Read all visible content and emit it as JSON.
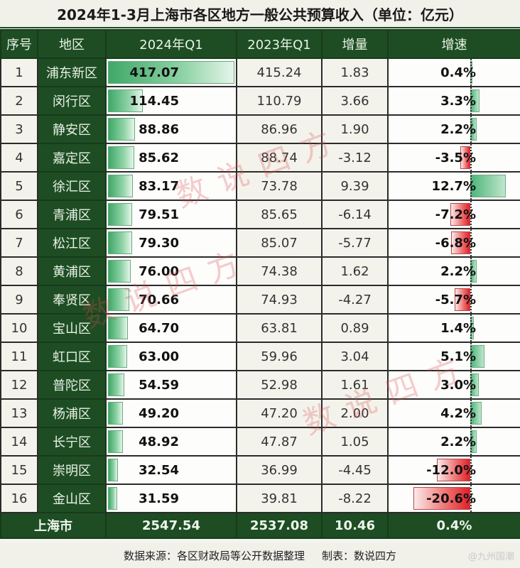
{
  "title": "2024年1-3月上海市各区地方一般公共预算收入（单位：亿元）",
  "headers": [
    "序号",
    "地区",
    "2024年Q1",
    "2023年Q1",
    "增量",
    "增速"
  ],
  "rows": [
    {
      "no": "1",
      "area": "浦东新区",
      "q1_2024": "417.07",
      "q1_2023": "415.24",
      "delta": "1.83",
      "rate": "0.4%"
    },
    {
      "no": "2",
      "area": "闵行区",
      "q1_2024": "114.45",
      "q1_2023": "110.79",
      "delta": "3.66",
      "rate": "3.3%"
    },
    {
      "no": "3",
      "area": "静安区",
      "q1_2024": "88.86",
      "q1_2023": "86.96",
      "delta": "1.90",
      "rate": "2.2%"
    },
    {
      "no": "4",
      "area": "嘉定区",
      "q1_2024": "85.62",
      "q1_2023": "88.74",
      "delta": "-3.12",
      "rate": "-3.5%"
    },
    {
      "no": "5",
      "area": "徐汇区",
      "q1_2024": "83.17",
      "q1_2023": "73.78",
      "delta": "9.39",
      "rate": "12.7%"
    },
    {
      "no": "6",
      "area": "青浦区",
      "q1_2024": "79.51",
      "q1_2023": "85.65",
      "delta": "-6.14",
      "rate": "-7.2%"
    },
    {
      "no": "7",
      "area": "松江区",
      "q1_2024": "79.30",
      "q1_2023": "85.07",
      "delta": "-5.77",
      "rate": "-6.8%"
    },
    {
      "no": "8",
      "area": "黄浦区",
      "q1_2024": "76.00",
      "q1_2023": "74.38",
      "delta": "1.62",
      "rate": "2.2%"
    },
    {
      "no": "9",
      "area": "奉贤区",
      "q1_2024": "70.66",
      "q1_2023": "74.93",
      "delta": "-4.27",
      "rate": "-5.7%"
    },
    {
      "no": "10",
      "area": "宝山区",
      "q1_2024": "64.70",
      "q1_2023": "63.81",
      "delta": "0.89",
      "rate": "1.4%"
    },
    {
      "no": "11",
      "area": "虹口区",
      "q1_2024": "63.00",
      "q1_2023": "59.96",
      "delta": "3.04",
      "rate": "5.1%"
    },
    {
      "no": "12",
      "area": "普陀区",
      "q1_2024": "54.59",
      "q1_2023": "52.98",
      "delta": "1.61",
      "rate": "3.0%"
    },
    {
      "no": "13",
      "area": "杨浦区",
      "q1_2024": "49.20",
      "q1_2023": "47.20",
      "delta": "2.00",
      "rate": "4.2%"
    },
    {
      "no": "14",
      "area": "长宁区",
      "q1_2024": "48.92",
      "q1_2023": "47.87",
      "delta": "1.05",
      "rate": "2.2%"
    },
    {
      "no": "15",
      "area": "崇明区",
      "q1_2024": "32.54",
      "q1_2023": "36.99",
      "delta": "-4.45",
      "rate": "-12.0%"
    },
    {
      "no": "16",
      "area": "金山区",
      "q1_2024": "31.59",
      "q1_2023": "39.81",
      "delta": "-8.22",
      "rate": "-20.6%"
    }
  ],
  "total": {
    "area": "上海市",
    "q1_2024": "2547.54",
    "q1_2023": "2537.08",
    "delta": "10.46",
    "rate": "0.4%"
  },
  "footer": {
    "source": "数据来源：各区财政局等公开数据整理",
    "maker": "制表：数说四方",
    "corner_watermark": "@九州国潮"
  },
  "watermark_text": "数说四方",
  "colors": {
    "header_green": "#1e4d23",
    "bar_green": "#3fa868",
    "bar_red": "#e0202a"
  },
  "chart_data": {
    "type": "table",
    "title": "2024年1-3月上海市各区地方一般公共预算收入（单位：亿元）",
    "columns": [
      "序号",
      "地区",
      "2024年Q1",
      "2023年Q1",
      "增量",
      "增速"
    ],
    "categories": [
      "浦东新区",
      "闵行区",
      "静安区",
      "嘉定区",
      "徐汇区",
      "青浦区",
      "松江区",
      "黄浦区",
      "奉贤区",
      "宝山区",
      "虹口区",
      "普陀区",
      "杨浦区",
      "长宁区",
      "崇明区",
      "金山区"
    ],
    "series": [
      {
        "name": "2024年Q1",
        "values": [
          417.07,
          114.45,
          88.86,
          85.62,
          83.17,
          79.51,
          79.3,
          76.0,
          70.66,
          64.7,
          63.0,
          54.59,
          49.2,
          48.92,
          32.54,
          31.59
        ]
      },
      {
        "name": "2023年Q1",
        "values": [
          415.24,
          110.79,
          86.96,
          88.74,
          73.78,
          85.65,
          85.07,
          74.38,
          74.93,
          63.81,
          59.96,
          52.98,
          47.2,
          47.87,
          36.99,
          39.81
        ]
      },
      {
        "name": "增量",
        "values": [
          1.83,
          3.66,
          1.9,
          -3.12,
          9.39,
          -6.14,
          -5.77,
          1.62,
          -4.27,
          0.89,
          3.04,
          1.61,
          2.0,
          1.05,
          -4.45,
          -8.22
        ]
      },
      {
        "name": "增速(%)",
        "values": [
          0.4,
          3.3,
          2.2,
          -3.5,
          12.7,
          -7.2,
          -6.8,
          2.2,
          -5.7,
          1.4,
          5.1,
          3.0,
          4.2,
          2.2,
          -12.0,
          -20.6
        ]
      }
    ],
    "total": {
      "name": "上海市",
      "q1_2024": 2547.54,
      "q1_2023": 2537.08,
      "delta": 10.46,
      "rate_pct": 0.4
    },
    "source": "数据来源：各区财政局等公开数据整理",
    "maker": "制表：数说四方"
  }
}
